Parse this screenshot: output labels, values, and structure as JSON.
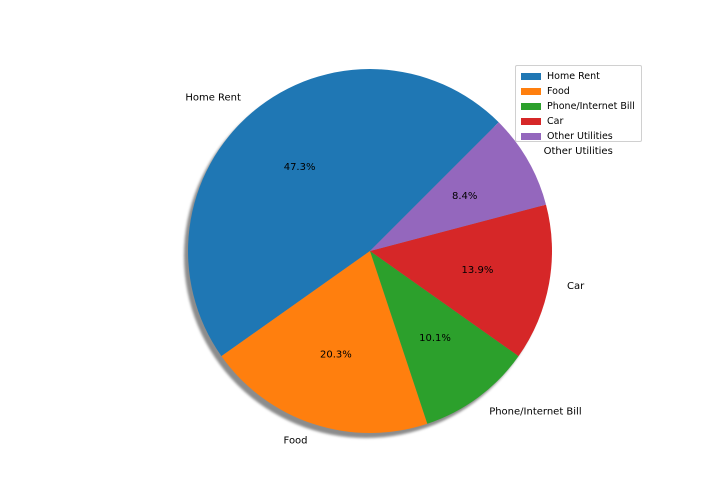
{
  "chart_data": {
    "type": "pie",
    "categories": [
      "Home Rent",
      "Food",
      "Phone/Internet Bill",
      "Car",
      "Other Utilities"
    ],
    "values": [
      47.3,
      20.3,
      10.1,
      13.9,
      8.4
    ],
    "percent_labels": [
      "47.3%",
      "20.3%",
      "10.1%",
      "13.9%",
      "8.4%"
    ],
    "colors": [
      "#1f77b4",
      "#ff7f0e",
      "#2ca02c",
      "#d62728",
      "#9467bd"
    ],
    "start_angle_deg": 45,
    "shadow": true,
    "legend": {
      "placement": "upper right",
      "entries": [
        "Home Rent",
        "Food",
        "Phone/Internet Bill",
        "Car",
        "Other Utilities"
      ]
    }
  }
}
